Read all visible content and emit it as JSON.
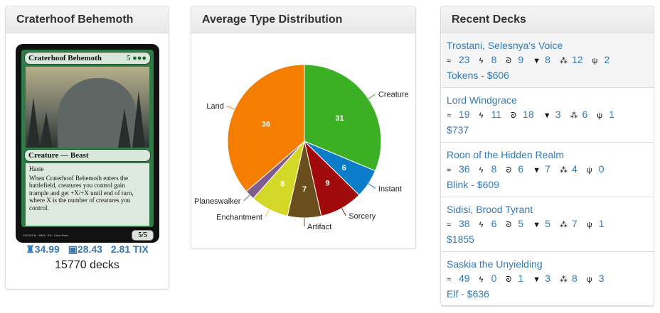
{
  "card_panel": {
    "title": "Craterhoof Behemoth",
    "card": {
      "name": "Craterhoof Behemoth",
      "mana_cost": "5 ●●●",
      "type_line": "Creature — Beast",
      "text": [
        "Haste",
        "When Craterhoof Behemoth enters the battlefield, creatures you control gain trample and get +X/+X until end of turn, where X is the number of creatures you control."
      ],
      "pt": "5/5",
      "footer": "122/249 M · MM3 · EN · Chris Rahn"
    },
    "price_paper": "34.99",
    "price_foil": "28.43",
    "price_tix": "2.81 TIX",
    "deck_count": "15770 decks"
  },
  "chart_panel": {
    "title": "Average Type Distribution"
  },
  "chart_data": {
    "type": "pie",
    "title": "Average Type Distribution",
    "slices": [
      {
        "label": "Creature",
        "value": 31,
        "color": "#3cb025",
        "show_value": true
      },
      {
        "label": "Instant",
        "value": 6,
        "color": "#0b7cc8",
        "show_value": true
      },
      {
        "label": "Sorcery",
        "value": 9,
        "color": "#a00a0a",
        "show_value": true
      },
      {
        "label": "Artifact",
        "value": 7,
        "color": "#6b4e1e",
        "show_value": true
      },
      {
        "label": "Enchantment",
        "value": 8,
        "color": "#d5d727",
        "show_value": true
      },
      {
        "label": "Planeswalker",
        "value": 2,
        "color": "#7e5c8e",
        "show_value": false
      },
      {
        "label": "Land",
        "value": 36,
        "color": "#f57e00",
        "show_value": true
      }
    ]
  },
  "decks_panel": {
    "title": "Recent Decks",
    "icons": [
      "creature-icon",
      "instant-icon",
      "sorcery-icon",
      "artifact-icon",
      "enchantment-icon",
      "planeswalker-icon"
    ],
    "decks": [
      {
        "name": "Trostani, Selesnya's Voice",
        "counts": [
          "23",
          "8",
          "9",
          "8",
          "12",
          "2"
        ],
        "tag": "Tokens - $606"
      },
      {
        "name": "Lord Windgrace",
        "counts": [
          "19",
          "11",
          "18",
          "3",
          "6",
          "1"
        ],
        "tag": "$737"
      },
      {
        "name": "Roon of the Hidden Realm",
        "counts": [
          "36",
          "8",
          "6",
          "7",
          "4",
          "0"
        ],
        "tag": "Blink - $609"
      },
      {
        "name": "Sidisi, Brood Tyrant",
        "counts": [
          "38",
          "6",
          "5",
          "5",
          "7",
          "1"
        ],
        "tag": "$1855"
      },
      {
        "name": "Saskia the Unyielding",
        "counts": [
          "49",
          "0",
          "1",
          "3",
          "8",
          "3"
        ],
        "tag": "Elf - $636"
      }
    ]
  }
}
